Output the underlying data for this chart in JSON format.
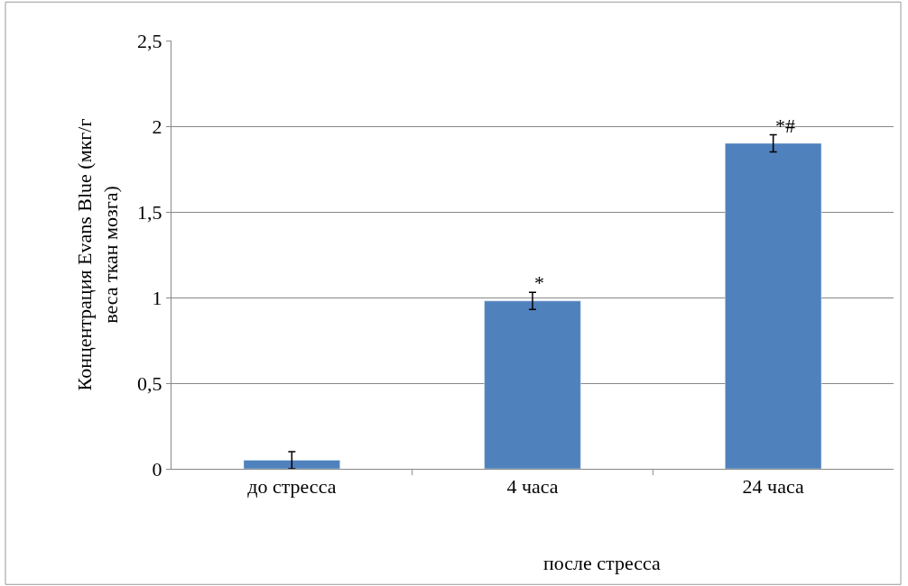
{
  "chart_data": {
    "type": "bar",
    "ylabel": "Концентрация Evans Blue (мкг/г веса ткан мозга)",
    "categories": [
      "до стресса",
      "4 часа",
      "24 часа"
    ],
    "values": [
      0.05,
      0.98,
      1.9
    ],
    "errors": [
      0.05,
      0.05,
      0.05
    ],
    "color": "#4f81bd",
    "ylim": [
      0,
      2.5
    ],
    "yticks": [
      {
        "value": 0,
        "label": "0"
      },
      {
        "value": 0.5,
        "label": "0,5"
      },
      {
        "value": 1,
        "label": "1"
      },
      {
        "value": 1.5,
        "label": "1,5"
      },
      {
        "value": 2,
        "label": "2"
      },
      {
        "value": 2.5,
        "label": "2,5"
      }
    ],
    "grid": "y",
    "annotations": [
      "*",
      "*#",
      "после стресса"
    ]
  }
}
